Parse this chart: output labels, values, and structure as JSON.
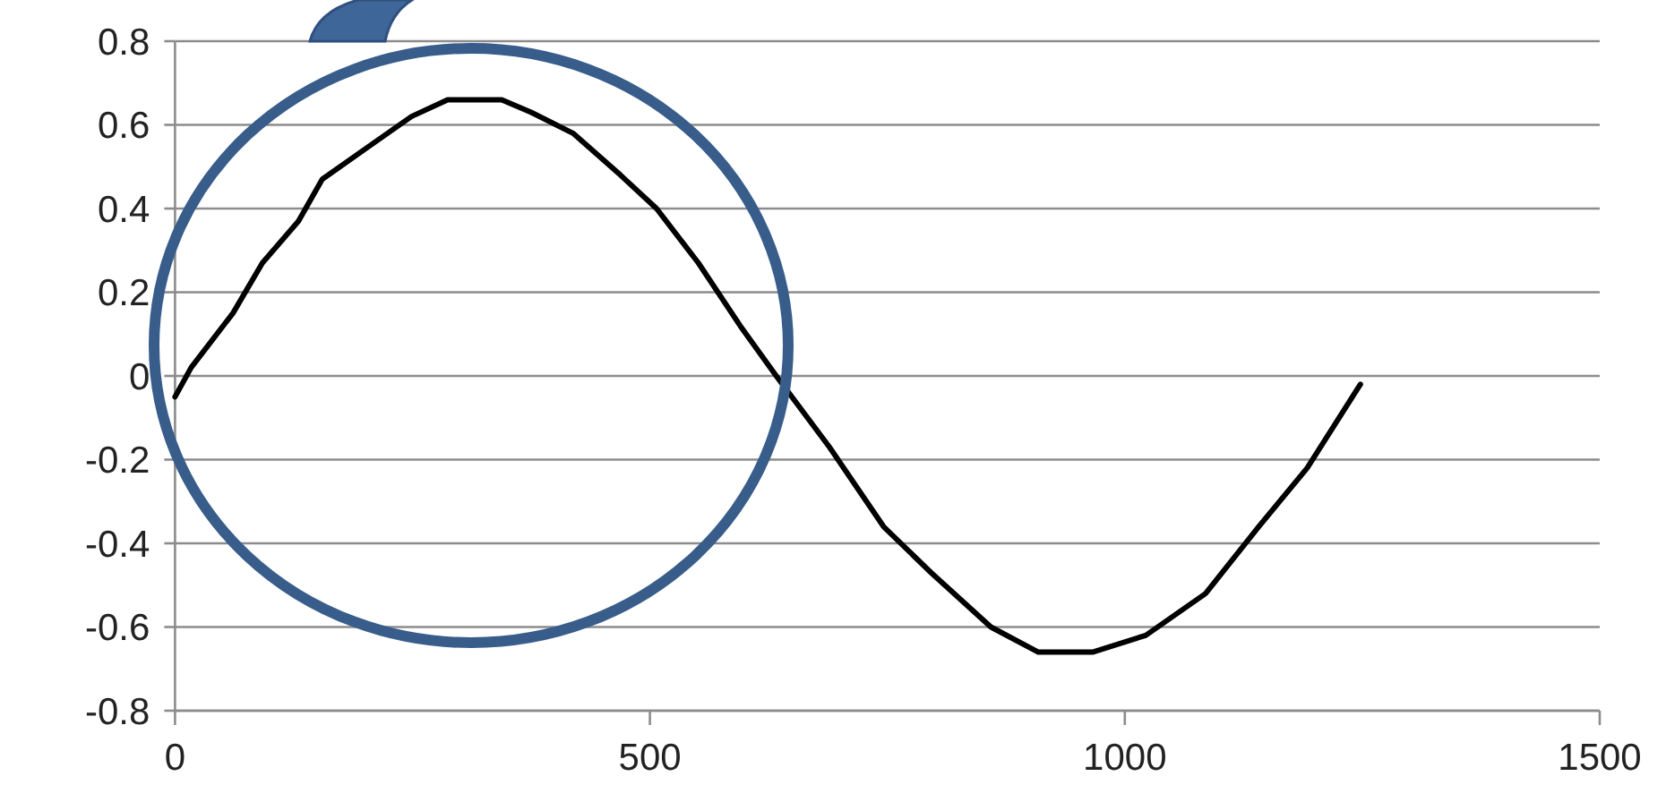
{
  "chart_data": {
    "type": "line",
    "grid": "y",
    "xlim": [
      0,
      1500
    ],
    "xticks": [
      0,
      500,
      1000,
      1500
    ],
    "ylim": [
      -0.8,
      0.8
    ],
    "yticks": [
      {
        "value": -0.8,
        "label": "-0.8"
      },
      {
        "value": -0.6,
        "label": "-0.6"
      },
      {
        "value": -0.4,
        "label": "-0.4"
      },
      {
        "value": -0.2,
        "label": "-0.2"
      },
      {
        "value": 0,
        "label": "0"
      },
      {
        "value": 0.2,
        "label": "0.2"
      },
      {
        "value": 0.4,
        "label": "0.4"
      },
      {
        "value": 0.6,
        "label": "0.6"
      },
      {
        "value": 0.8,
        "label": "0.8"
      }
    ],
    "series": [
      {
        "color": "#000000",
        "x": [
          0,
          17,
          61,
          92,
          130,
          155,
          205,
          249,
          287,
          344,
          375,
          419,
          469,
          507,
          551,
          595,
          633,
          689,
          746,
          796,
          859,
          909,
          966,
          1022,
          1085,
          1141,
          1192,
          1248
        ],
        "values": [
          -0.05,
          0.02,
          0.15,
          0.27,
          0.37,
          0.47,
          0.55,
          0.62,
          0.66,
          0.66,
          0.63,
          0.58,
          0.48,
          0.4,
          0.27,
          0.12,
          0,
          -0.17,
          -0.36,
          -0.47,
          -0.6,
          -0.66,
          -0.66,
          -0.62,
          -0.52,
          -0.36,
          -0.22,
          -0.02
        ]
      }
    ]
  }
}
